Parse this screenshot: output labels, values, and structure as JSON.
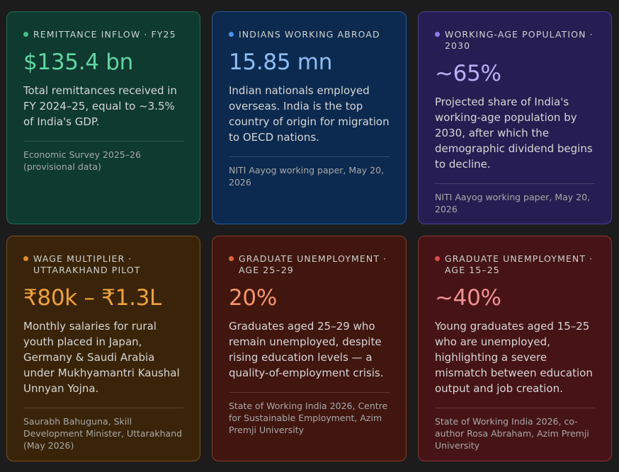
{
  "cards": [
    {
      "label": "Remittance inflow · FY25",
      "value": "$135.4 bn",
      "description": "Total remittances received in FY 2024–25, equal to ~3.5% of India's GDP.",
      "source": "Economic Survey 2025–26 (provisional data)",
      "accent": "#5fd6a3"
    },
    {
      "label": "Indians working abroad",
      "value": "15.85 mn",
      "description": "Indian nationals employed overseas. India is the top country of origin for migration to OECD nations.",
      "source": "NITI Aayog working paper, May 20, 2026",
      "accent": "#8fbdf5"
    },
    {
      "label": "Working-age population · 2030",
      "value": "~65%",
      "description": "Projected share of India's working-age population by 2030, after which the demographic dividend begins to decline.",
      "source": "NITI Aayog working paper, May 20, 2026",
      "accent": "#b9aef7"
    },
    {
      "label": "Wage multiplier · Uttarakhand pilot",
      "value": "₹80k – ₹1.3L",
      "description": "Monthly salaries for rural youth placed in Japan, Germany & Saudi Arabia under Mukhyamantri Kaushal Unnyan Yojna.",
      "source": "Saurabh Bahuguna, Skill Development Minister, Uttarakhand (May 2026)",
      "accent": "#f0a13a"
    },
    {
      "label": "Graduate unemployment · Age 25–29",
      "value": "20%",
      "description": "Graduates aged 25–29 who remain unemployed, despite rising education levels — a quality-of-employment crisis.",
      "source": "State of Working India 2026, Centre for Sustainable Employment, Azim Premji University",
      "accent": "#f5946c"
    },
    {
      "label": "Graduate unemployment · Age 15–25",
      "value": "~40%",
      "description": "Young graduates aged 15–25 who are unemployed, highlighting a severe mismatch between education output and job creation.",
      "source": "State of Working India 2026, co-author Rosa Abraham, Azim Premji University",
      "accent": "#f28f93"
    }
  ]
}
